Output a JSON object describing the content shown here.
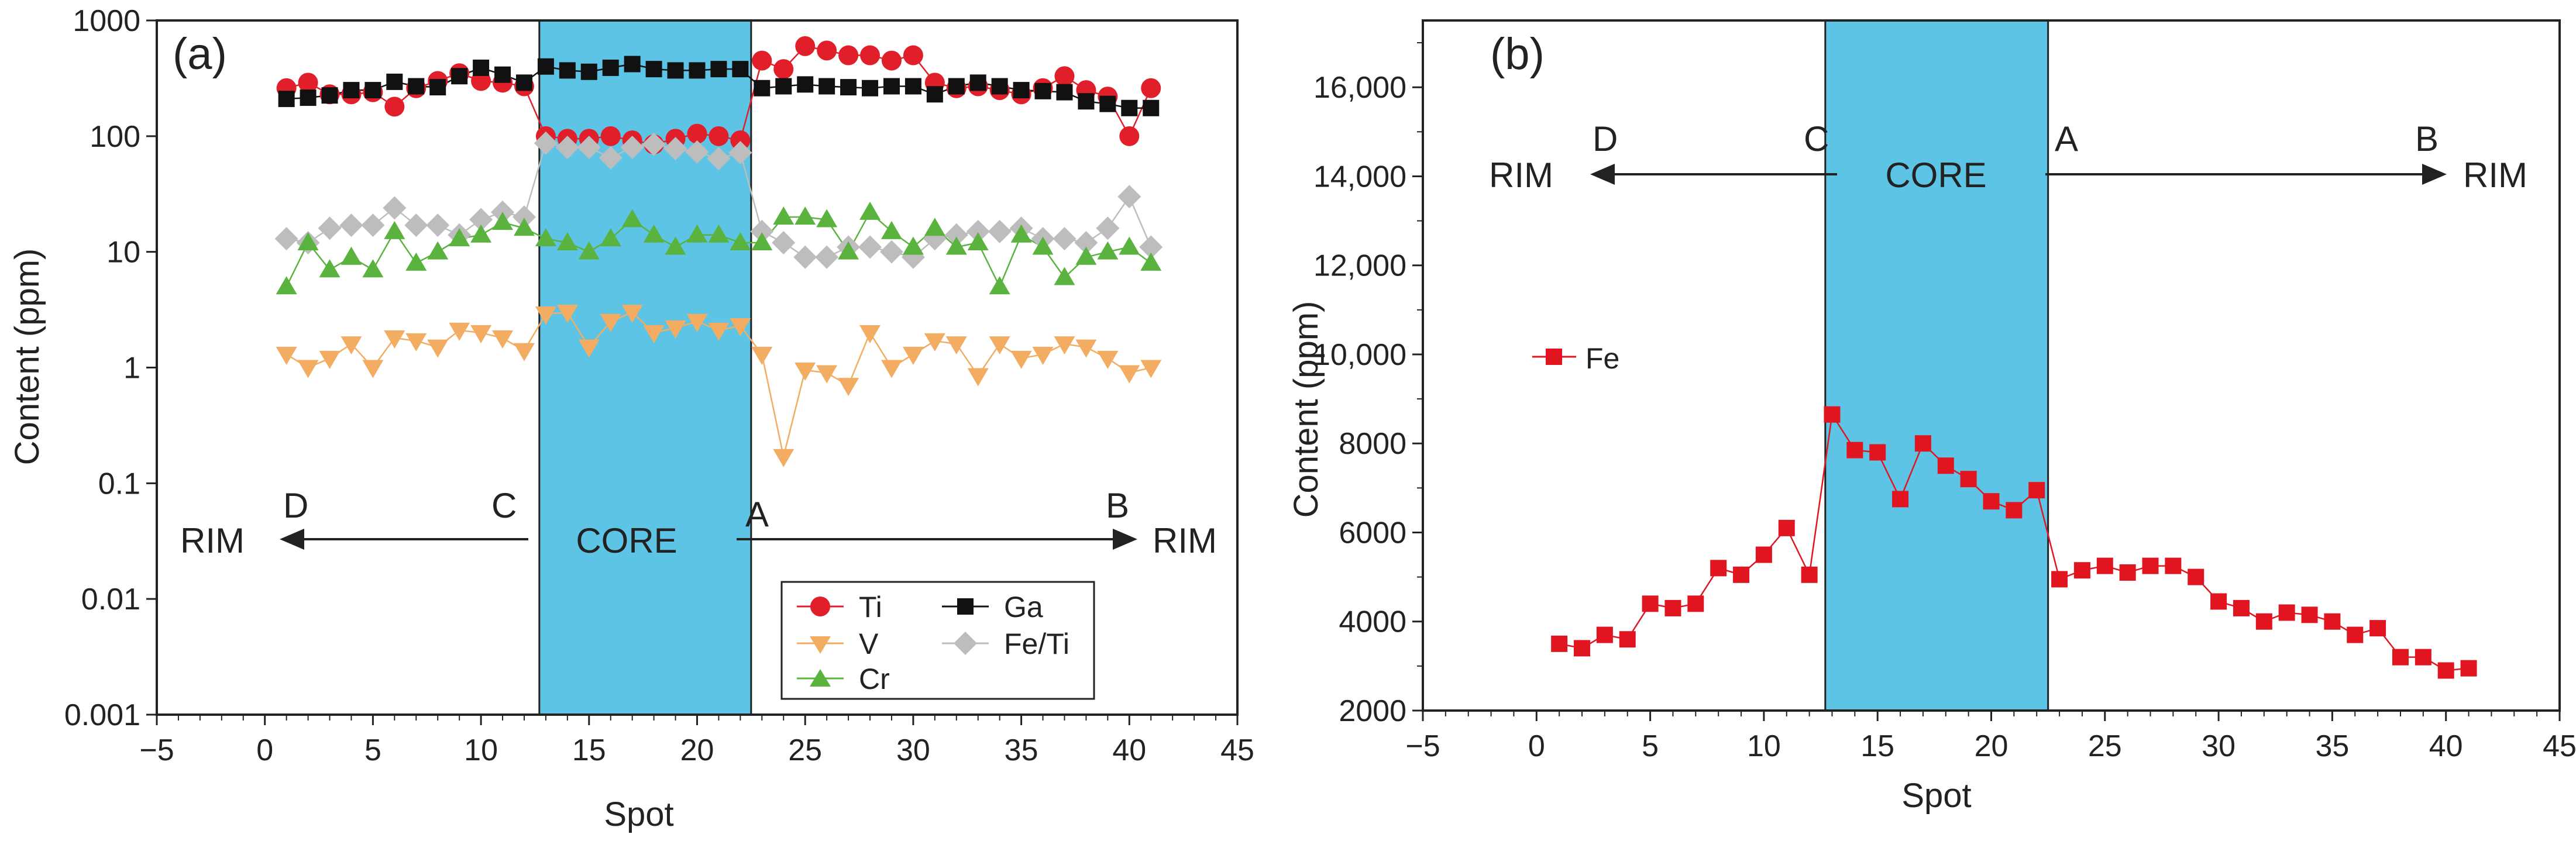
{
  "colors": {
    "core_fill": "#5ec4e6",
    "Ti": "#e01f2a",
    "Ga": "#111111",
    "V": "#f2ad63",
    "FeTi": "#bdbdbd",
    "Cr": "#59b33e",
    "Fe": "#e0151f",
    "arrow": "#222222"
  },
  "chart_data": [
    {
      "panel_label": "(a)",
      "type": "scatter",
      "xlabel": "Spot",
      "ylabel": "Content (ppm)",
      "xlim": [
        -5,
        45
      ],
      "ylim": [
        0.001,
        1000
      ],
      "yscale": "log",
      "x_ticks": [
        "−5",
        "0",
        "5",
        "10",
        "15",
        "20",
        "25",
        "30",
        "35",
        "40",
        "45"
      ],
      "y_ticks": [
        "0.001",
        "0.01",
        "0.1",
        "1",
        "10",
        "100",
        "1000"
      ],
      "core_region": [
        12.7,
        22.5
      ],
      "annotations": {
        "core": "CORE",
        "rim_left": "RIM",
        "rim_right": "RIM",
        "D": "D",
        "C": "C",
        "A": "A",
        "B": "B"
      },
      "legend": {
        "Ti": "Ti",
        "Ga": "Ga",
        "V": "V",
        "FeTi": "Fe/Ti",
        "Cr": "Cr"
      },
      "x": [
        1,
        2,
        3,
        4,
        5,
        6,
        7,
        8,
        9,
        10,
        11,
        12,
        13,
        14,
        15,
        16,
        17,
        18,
        19,
        20,
        21,
        22,
        23,
        24,
        25,
        26,
        27,
        28,
        29,
        30,
        31,
        32,
        33,
        34,
        35,
        36,
        37,
        38,
        39,
        40,
        41
      ],
      "series": [
        {
          "name": "Ti",
          "marker": "circle",
          "values": [
            260,
            290,
            230,
            230,
            240,
            180,
            260,
            300,
            350,
            300,
            290,
            270,
            100,
            95,
            95,
            100,
            92,
            85,
            95,
            105,
            100,
            92,
            450,
            380,
            600,
            550,
            500,
            500,
            450,
            500,
            290,
            260,
            270,
            250,
            230,
            260,
            330,
            250,
            220,
            100,
            260
          ]
        },
        {
          "name": "Ga",
          "marker": "square",
          "values": [
            210,
            215,
            225,
            250,
            250,
            295,
            270,
            265,
            330,
            390,
            340,
            290,
            400,
            370,
            360,
            390,
            420,
            380,
            370,
            370,
            380,
            380,
            260,
            270,
            280,
            270,
            265,
            260,
            270,
            270,
            230,
            270,
            290,
            270,
            250,
            245,
            240,
            200,
            190,
            175,
            175
          ]
        },
        {
          "name": "V",
          "marker": "triangle-down",
          "values": [
            1.3,
            1.0,
            1.2,
            1.6,
            1.0,
            1.8,
            1.7,
            1.5,
            2.1,
            2.0,
            1.8,
            1.4,
            2.9,
            3.0,
            1.5,
            2.5,
            3.0,
            2.0,
            2.2,
            2.5,
            2.1,
            2.3,
            1.3,
            0.17,
            0.95,
            0.9,
            0.7,
            2.0,
            1.0,
            1.3,
            1.7,
            1.6,
            0.85,
            1.6,
            1.2,
            1.3,
            1.6,
            1.5,
            1.2,
            0.9,
            1.0
          ]
        },
        {
          "name": "Fe/Ti",
          "marker": "diamond",
          "values": [
            13,
            12,
            16,
            17,
            17,
            24,
            17,
            17,
            14,
            19,
            22,
            20,
            87,
            80,
            80,
            65,
            80,
            85,
            78,
            73,
            64,
            72,
            15,
            12,
            9,
            9,
            11,
            11,
            10,
            9,
            13,
            14,
            15,
            15,
            16,
            13,
            13,
            12,
            16,
            30,
            11
          ]
        },
        {
          "name": "Cr",
          "marker": "triangle-up",
          "values": [
            5,
            12,
            7,
            9,
            7,
            15,
            8,
            10,
            13,
            14,
            18,
            16,
            13,
            12,
            10,
            13,
            19,
            14,
            11,
            14,
            14,
            12,
            12,
            20,
            20,
            19,
            10,
            22,
            15,
            11,
            16,
            11,
            12,
            5,
            14,
            11,
            6,
            9,
            10,
            11,
            8
          ]
        }
      ]
    },
    {
      "panel_label": "(b)",
      "type": "line",
      "xlabel": "Spot",
      "ylabel": "Content (ppm)",
      "xlim": [
        -5,
        45
      ],
      "ylim": [
        2000,
        17500
      ],
      "x_ticks": [
        "−5",
        "0",
        "5",
        "10",
        "15",
        "20",
        "25",
        "30",
        "35",
        "40",
        "45"
      ],
      "y_ticks": [
        "2000",
        "4000",
        "6000",
        "8000",
        "10,000",
        "12,000",
        "14,000",
        "16,000"
      ],
      "core_region": [
        12.7,
        22.5
      ],
      "annotations": {
        "core": "CORE",
        "rim_left": "RIM",
        "rim_right": "RIM",
        "D": "D",
        "C": "C",
        "A": "A",
        "B": "B"
      },
      "legend": {
        "Fe": "Fe"
      },
      "x": [
        1,
        2,
        3,
        4,
        5,
        6,
        7,
        8,
        9,
        10,
        11,
        12,
        13,
        14,
        15,
        16,
        17,
        18,
        19,
        20,
        21,
        22,
        23,
        24,
        25,
        26,
        27,
        28,
        29,
        30,
        31,
        32,
        33,
        34,
        35,
        36,
        37,
        38,
        39,
        40,
        41
      ],
      "series": [
        {
          "name": "Fe",
          "marker": "square",
          "values": [
            3500,
            3400,
            3700,
            3600,
            4400,
            4300,
            4400,
            5200,
            5050,
            5500,
            6100,
            5050,
            8650,
            7850,
            7800,
            6750,
            8000,
            7500,
            7200,
            6700,
            6500,
            6950,
            4950,
            5150,
            5250,
            5100,
            5250,
            5250,
            5000,
            4450,
            4300,
            4000,
            4200,
            4150,
            4000,
            3700,
            3850,
            3200,
            3200,
            2900,
            2950
          ]
        }
      ]
    }
  ]
}
